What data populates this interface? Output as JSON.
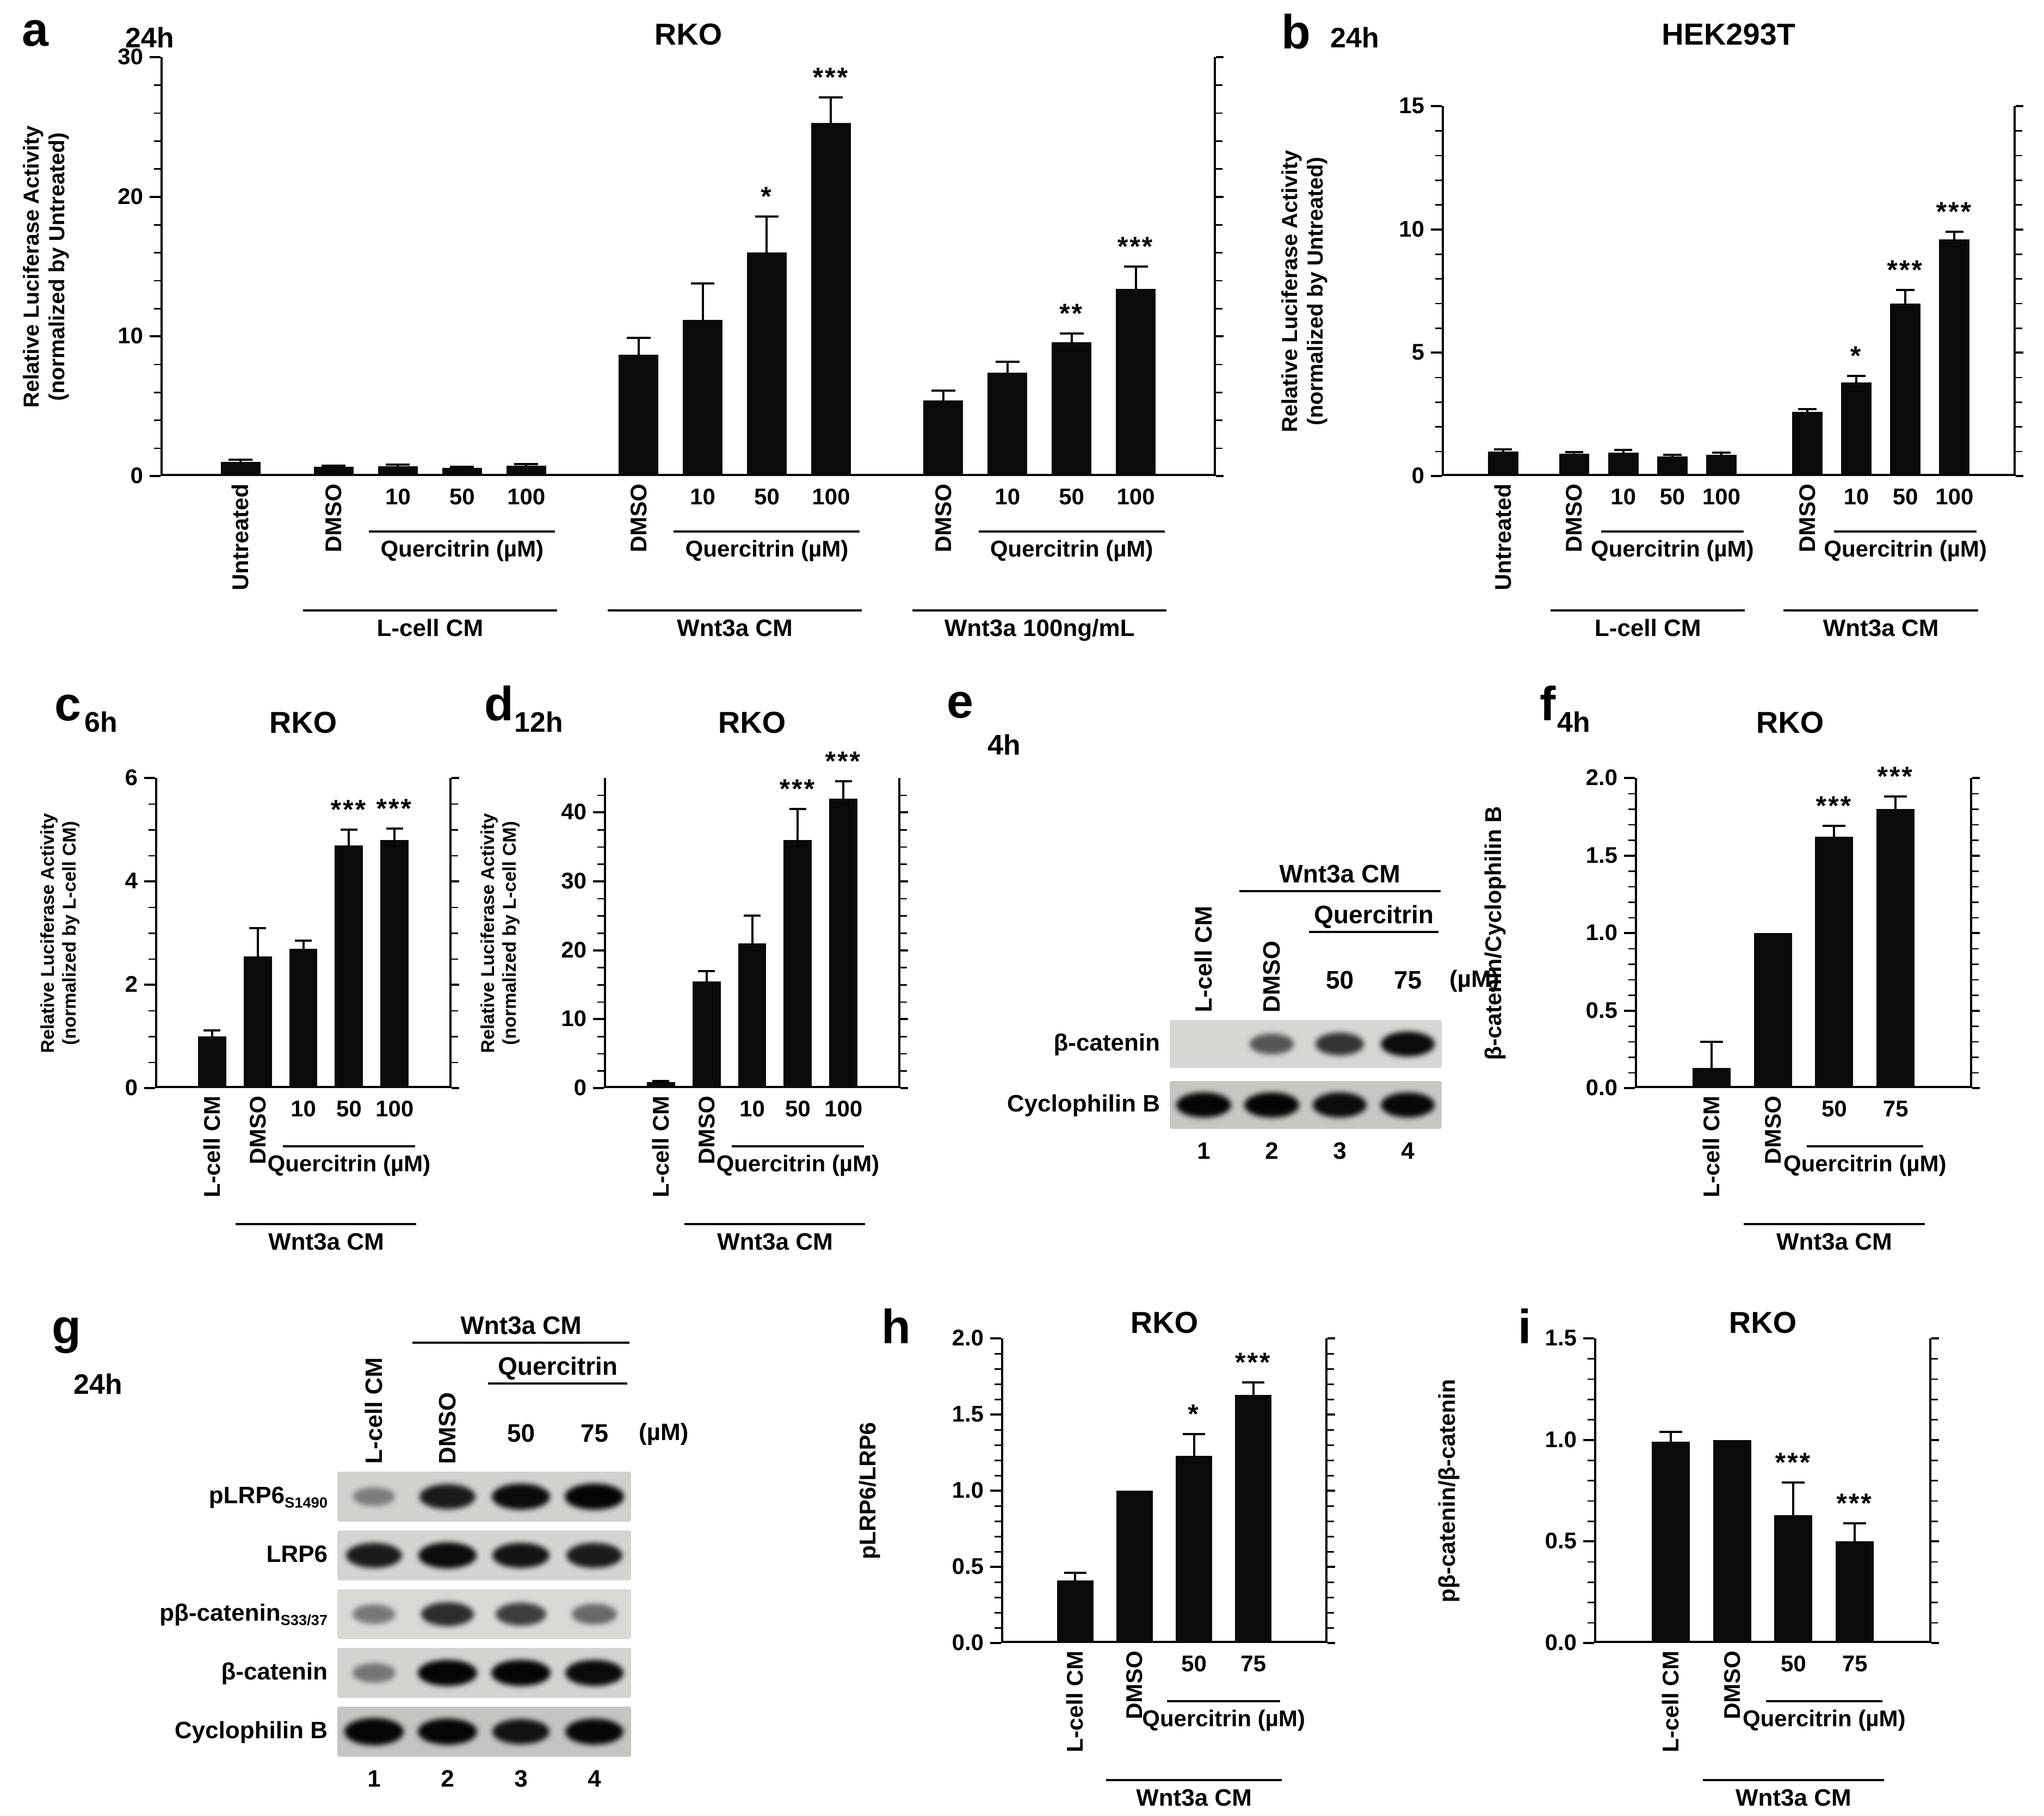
{
  "panels": {
    "a": "a",
    "b": "b",
    "c": "c",
    "d": "d",
    "e": "e",
    "f": "f",
    "g": "g",
    "h": "h",
    "i": "i"
  },
  "colors": {
    "bar": "#0a0a0a",
    "axis": "#000000",
    "background": "#ffffff"
  },
  "chart_data": [
    {
      "id": "a",
      "type": "bar",
      "time": "24h",
      "title": "RKO",
      "ylabel": [
        "Relative Luciferase Activity",
        "(normalized by Untreated)"
      ],
      "xlabel": "",
      "ylim": [
        0,
        30
      ],
      "yticks": [
        0,
        10,
        20,
        30
      ],
      "yminor": 2,
      "ydec": 0,
      "bars": [
        {
          "label": "Untreated",
          "v": true,
          "value": 1.0,
          "err": 0.15,
          "sig": "",
          "gap": 0
        },
        {
          "label": "DMSO",
          "v": true,
          "value": 0.65,
          "err": 0.1,
          "sig": "",
          "gap": 0.45
        },
        {
          "label": "10",
          "v": false,
          "value": 0.7,
          "err": 0.1,
          "sig": "",
          "gap": 0
        },
        {
          "label": "50",
          "v": false,
          "value": 0.6,
          "err": 0.08,
          "sig": "",
          "gap": 0
        },
        {
          "label": "100",
          "v": false,
          "value": 0.75,
          "err": 0.12,
          "sig": "",
          "gap": 0
        },
        {
          "label": "DMSO",
          "v": true,
          "value": 8.7,
          "err": 1.2,
          "sig": "",
          "gap": 0.75
        },
        {
          "label": "10",
          "v": false,
          "value": 11.2,
          "err": 2.6,
          "sig": "",
          "gap": 0
        },
        {
          "label": "50",
          "v": false,
          "value": 16.0,
          "err": 2.6,
          "sig": "*",
          "gap": 0
        },
        {
          "label": "100",
          "v": false,
          "value": 25.3,
          "err": 1.8,
          "sig": "***",
          "gap": 0
        },
        {
          "label": "DMSO",
          "v": true,
          "value": 5.4,
          "err": 0.7,
          "sig": "",
          "gap": 0.75
        },
        {
          "label": "10",
          "v": false,
          "value": 7.4,
          "err": 0.8,
          "sig": "",
          "gap": 0
        },
        {
          "label": "50",
          "v": false,
          "value": 9.6,
          "err": 0.6,
          "sig": "**",
          "gap": 0
        },
        {
          "label": "100",
          "v": false,
          "value": 13.4,
          "err": 1.6,
          "sig": "***",
          "gap": 0
        }
      ],
      "quercitrin_brackets": [
        {
          "from": 2,
          "to": 4,
          "label": "Quercitrin (µM)"
        },
        {
          "from": 6,
          "to": 8,
          "label": "Quercitrin (µM)"
        },
        {
          "from": 10,
          "to": 12,
          "label": "Quercitrin (µM)"
        }
      ],
      "group_brackets": [
        {
          "from": 1,
          "to": 4,
          "label": "L-cell CM"
        },
        {
          "from": 5,
          "to": 8,
          "label": "Wnt3a CM"
        },
        {
          "from": 9,
          "to": 12,
          "label": "Wnt3a 100ng/mL"
        }
      ]
    },
    {
      "id": "b",
      "type": "bar",
      "time": "24h",
      "title": "HEK293T",
      "ylabel": [
        "Relative Luciferase Activity",
        "(normalized by Untreated)"
      ],
      "xlabel": "",
      "ylim": [
        0,
        15
      ],
      "yticks": [
        0,
        5,
        10,
        15
      ],
      "yminor": 1,
      "ydec": 0,
      "bars": [
        {
          "label": "Untreated",
          "v": true,
          "value": 1.0,
          "err": 0.08,
          "sig": "",
          "gap": 0
        },
        {
          "label": "DMSO",
          "v": true,
          "value": 0.9,
          "err": 0.07,
          "sig": "",
          "gap": 0.45
        },
        {
          "label": "10",
          "v": false,
          "value": 0.95,
          "err": 0.1,
          "sig": "",
          "gap": 0
        },
        {
          "label": "50",
          "v": false,
          "value": 0.8,
          "err": 0.07,
          "sig": "",
          "gap": 0
        },
        {
          "label": "100",
          "v": false,
          "value": 0.85,
          "err": 0.1,
          "sig": "",
          "gap": 0
        },
        {
          "label": "DMSO",
          "v": true,
          "value": 2.6,
          "err": 0.12,
          "sig": "",
          "gap": 0.75
        },
        {
          "label": "10",
          "v": false,
          "value": 3.8,
          "err": 0.25,
          "sig": "*",
          "gap": 0
        },
        {
          "label": "50",
          "v": false,
          "value": 7.0,
          "err": 0.55,
          "sig": "***",
          "gap": 0
        },
        {
          "label": "100",
          "v": false,
          "value": 9.6,
          "err": 0.3,
          "sig": "***",
          "gap": 0
        }
      ],
      "quercitrin_brackets": [
        {
          "from": 2,
          "to": 4,
          "label": "Quercitrin (µM)"
        },
        {
          "from": 6,
          "to": 8,
          "label": "Quercitrin (µM)"
        }
      ],
      "group_brackets": [
        {
          "from": 1,
          "to": 4,
          "label": "L-cell CM"
        },
        {
          "from": 5,
          "to": 8,
          "label": "Wnt3a CM"
        }
      ]
    },
    {
      "id": "c",
      "type": "bar",
      "time": "6h",
      "title": "RKO",
      "ylabel": [
        "Relative Luciferase Activity",
        "(normalized by L-cell CM)"
      ],
      "xlabel": "",
      "ylim": [
        0,
        6
      ],
      "yticks": [
        0,
        2,
        4,
        6
      ],
      "yminor": 0.5,
      "ydec": 0,
      "bars": [
        {
          "label": "L-cell CM",
          "v": true,
          "value": 1.0,
          "err": 0.12,
          "sig": "",
          "gap": 0
        },
        {
          "label": "DMSO",
          "v": true,
          "value": 2.55,
          "err": 0.55,
          "sig": "",
          "gap": 0
        },
        {
          "label": "10",
          "v": false,
          "value": 2.7,
          "err": 0.15,
          "sig": "",
          "gap": 0
        },
        {
          "label": "50",
          "v": false,
          "value": 4.7,
          "err": 0.3,
          "sig": "***",
          "gap": 0
        },
        {
          "label": "100",
          "v": false,
          "value": 4.8,
          "err": 0.22,
          "sig": "***",
          "gap": 0
        }
      ],
      "quercitrin_brackets": [
        {
          "from": 2,
          "to": 4,
          "label": "Quercitrin (µM)"
        }
      ],
      "group_brackets": [
        {
          "from": 1,
          "to": 4,
          "label": "Wnt3a CM"
        }
      ]
    },
    {
      "id": "d",
      "type": "bar",
      "time": "12h",
      "title": "RKO",
      "ylabel": [
        "Relative Luciferase Activity",
        "(normalized by L-cell CM)"
      ],
      "xlabel": "",
      "ylim": [
        0,
        45
      ],
      "yticks": [
        0,
        10,
        20,
        30,
        40
      ],
      "yminor": 2.5,
      "ydec": 0,
      "bars": [
        {
          "label": "L-cell CM",
          "v": true,
          "value": 0.9,
          "err": 0.15,
          "sig": "",
          "gap": 0
        },
        {
          "label": "DMSO",
          "v": true,
          "value": 15.5,
          "err": 1.5,
          "sig": "",
          "gap": 0
        },
        {
          "label": "10",
          "v": false,
          "value": 21,
          "err": 4,
          "sig": "",
          "gap": 0
        },
        {
          "label": "50",
          "v": false,
          "value": 36,
          "err": 4.5,
          "sig": "***",
          "gap": 0
        },
        {
          "label": "100",
          "v": false,
          "value": 42,
          "err": 2.5,
          "sig": "***",
          "gap": 0
        }
      ],
      "quercitrin_brackets": [
        {
          "from": 2,
          "to": 4,
          "label": "Quercitrin (µM)"
        }
      ],
      "group_brackets": [
        {
          "from": 1,
          "to": 4,
          "label": "Wnt3a CM"
        }
      ]
    },
    {
      "id": "f",
      "type": "bar",
      "time": "4h",
      "title": "RKO",
      "ylabel": [
        "β-catenin/Cyclophilin B"
      ],
      "xlabel": "",
      "ylim": [
        0,
        2
      ],
      "yticks": [
        0,
        0.5,
        1,
        1.5,
        2
      ],
      "yminor": 0.1,
      "ydec": 1,
      "bars": [
        {
          "label": "L-cell CM",
          "v": true,
          "value": 0.13,
          "err": 0.17,
          "sig": "",
          "gap": 0
        },
        {
          "label": "DMSO",
          "v": true,
          "value": 1.0,
          "err": 0,
          "sig": "",
          "gap": 0
        },
        {
          "label": "50",
          "v": false,
          "value": 1.62,
          "err": 0.07,
          "sig": "***",
          "gap": 0
        },
        {
          "label": "75",
          "v": false,
          "value": 1.8,
          "err": 0.08,
          "sig": "***",
          "gap": 0
        }
      ],
      "quercitrin_brackets": [
        {
          "from": 2,
          "to": 3,
          "label": "Quercitrin (µM)"
        }
      ],
      "group_brackets": [
        {
          "from": 1,
          "to": 3,
          "label": "Wnt3a CM"
        }
      ]
    },
    {
      "id": "h",
      "type": "bar",
      "time": "",
      "title": "RKO",
      "ylabel": [
        "pLRP6/LRP6"
      ],
      "xlabel": "",
      "ylim": [
        0,
        2
      ],
      "yticks": [
        0,
        0.5,
        1,
        1.5,
        2
      ],
      "yminor": 0.1,
      "ydec": 1,
      "bars": [
        {
          "label": "L-cell CM",
          "v": true,
          "value": 0.41,
          "err": 0.05,
          "sig": "",
          "gap": 0
        },
        {
          "label": "DMSO",
          "v": true,
          "value": 1.0,
          "err": 0,
          "sig": "",
          "gap": 0
        },
        {
          "label": "50",
          "v": false,
          "value": 1.23,
          "err": 0.14,
          "sig": "*",
          "gap": 0
        },
        {
          "label": "75",
          "v": false,
          "value": 1.63,
          "err": 0.08,
          "sig": "***",
          "gap": 0
        }
      ],
      "quercitrin_brackets": [
        {
          "from": 2,
          "to": 3,
          "label": "Quercitrin (µM)"
        }
      ],
      "group_brackets": [
        {
          "from": 1,
          "to": 3,
          "label": "Wnt3a CM"
        }
      ]
    },
    {
      "id": "i",
      "type": "bar",
      "time": "",
      "title": "RKO",
      "ylabel": [
        "pβ-catenin/β-catenin"
      ],
      "xlabel": "",
      "ylim": [
        0,
        1.5
      ],
      "yticks": [
        0,
        0.5,
        1,
        1.5
      ],
      "yminor": 0.1,
      "ydec": 1,
      "bars": [
        {
          "label": "L-cell CM",
          "v": true,
          "value": 0.99,
          "err": 0.05,
          "sig": "",
          "gap": 0
        },
        {
          "label": "DMSO",
          "v": true,
          "value": 1.0,
          "err": 0,
          "sig": "",
          "gap": 0
        },
        {
          "label": "50",
          "v": false,
          "value": 0.63,
          "err": 0.16,
          "sig": "***",
          "gap": 0
        },
        {
          "label": "75",
          "v": false,
          "value": 0.5,
          "err": 0.09,
          "sig": "***",
          "gap": 0
        }
      ],
      "quercitrin_brackets": [
        {
          "from": 2,
          "to": 3,
          "label": "Quercitrin (µM)"
        }
      ],
      "group_brackets": [
        {
          "from": 1,
          "to": 3,
          "label": "Wnt3a CM"
        }
      ]
    }
  ],
  "blots": {
    "e": {
      "time": "4h",
      "cm_label": "Wnt3a CM",
      "drug_label": "Quercitrin",
      "unit_label": "(µM)",
      "lanes": [
        {
          "label": "L-cell CM",
          "vertical": true
        },
        {
          "label": "DMSO",
          "vertical": true
        },
        {
          "label": "50",
          "vertical": false
        },
        {
          "label": "75",
          "vertical": false
        }
      ],
      "lane_numbers": [
        "1",
        "2",
        "3",
        "4"
      ],
      "rows": [
        {
          "label": "β-catenin",
          "sub": "",
          "bg": "#d8d6d2",
          "bands": [
            0.05,
            0.45,
            0.65,
            0.9
          ]
        },
        {
          "label": "Cyclophilin B",
          "sub": "",
          "bg": "#c9c7c3",
          "bands": [
            0.95,
            0.95,
            0.9,
            0.92
          ]
        }
      ]
    },
    "g": {
      "time": "24h",
      "cm_label": "Wnt3a CM",
      "drug_label": "Quercitrin",
      "unit_label": "(µM)",
      "lanes": [
        {
          "label": "L-cell CM",
          "vertical": true
        },
        {
          "label": "DMSO",
          "vertical": true
        },
        {
          "label": "50",
          "vertical": false
        },
        {
          "label": "75",
          "vertical": false
        }
      ],
      "lane_numbers": [
        "1",
        "2",
        "3",
        "4"
      ],
      "rows": [
        {
          "label": "pLRP6",
          "sub": "S1490",
          "bg": "#d3d1ce",
          "bands": [
            0.2,
            0.8,
            0.9,
            0.95
          ]
        },
        {
          "label": "LRP6",
          "sub": "",
          "bg": "#d6d4d1",
          "bands": [
            0.8,
            0.9,
            0.85,
            0.8
          ]
        },
        {
          "label": "pβ-catenin",
          "sub": "S33/37",
          "bg": "#dbd9d6",
          "bands": [
            0.25,
            0.7,
            0.6,
            0.35
          ]
        },
        {
          "label": "β-catenin",
          "sub": "",
          "bg": "#d5d3d0",
          "bands": [
            0.25,
            0.95,
            0.95,
            0.9
          ]
        },
        {
          "label": "Cyclophilin B",
          "sub": "",
          "bg": "#c6c4c1",
          "bands": [
            0.97,
            0.95,
            0.85,
            0.92
          ]
        }
      ]
    }
  }
}
